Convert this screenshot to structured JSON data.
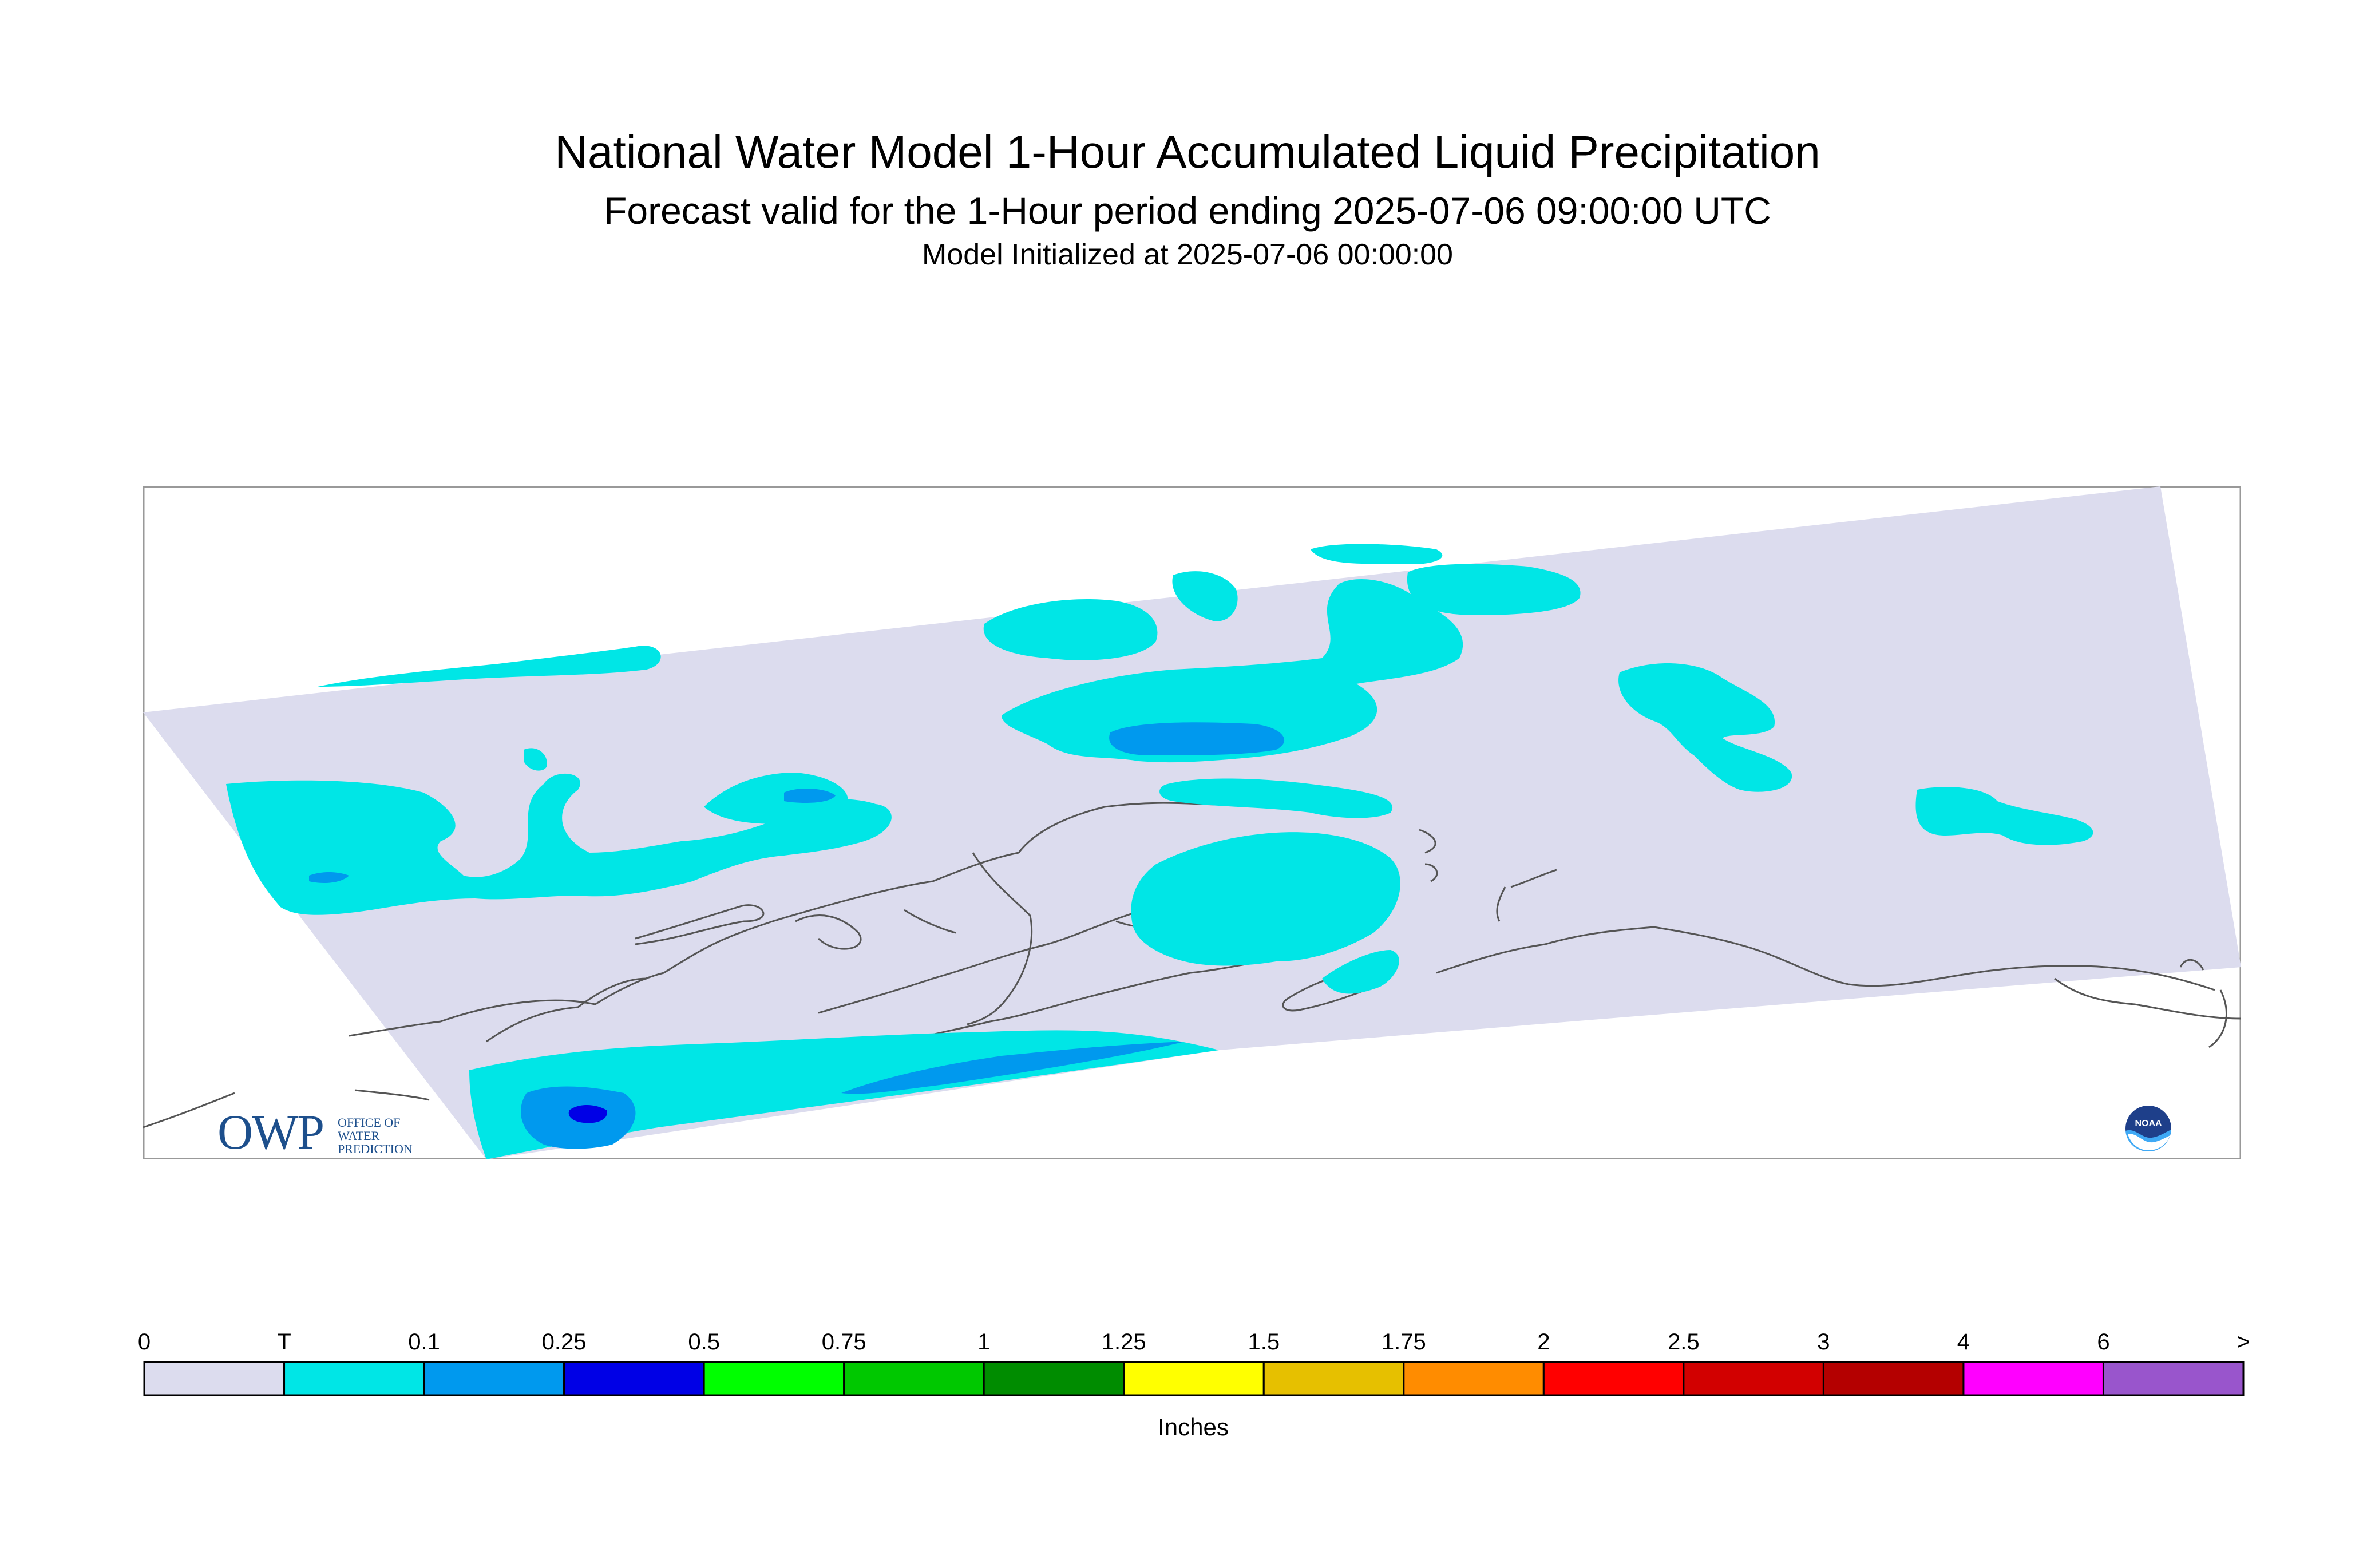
{
  "title": "National Water Model 1-Hour Accumulated Liquid Precipitation",
  "subtitle": "Forecast valid for the 1-Hour period ending 2025-07-06 09:00:00 UTC",
  "init": "Model Initialized at 2025-07-06 00:00:00",
  "logos": {
    "owp": "OWP",
    "owp_sub": [
      "OFFICE OF",
      "WATER",
      "PREDICTION"
    ],
    "noaa": "NOAA"
  },
  "colors": {
    "zero": "#dcdcee",
    "trace": "#00e6e6",
    "light": "#0099ee",
    "heavy": "#0000e6",
    "border": "#555555",
    "frame": "#999999"
  },
  "legend": {
    "unit_label": "Inches",
    "labels": [
      "0",
      "T",
      "0.1",
      "0.25",
      "0.5",
      "0.75",
      "1",
      "1.25",
      "1.5",
      "1.75",
      "2",
      "2.5",
      "3",
      "4",
      "6",
      ">"
    ],
    "colors": [
      "#dcdcee",
      "#00e6e6",
      "#0099ee",
      "#0000e6",
      "#00ff00",
      "#00c800",
      "#008c00",
      "#ffff00",
      "#e6c000",
      "#ff8c00",
      "#ff0000",
      "#d20000",
      "#b40000",
      "#ff00ff",
      "#9955cc"
    ]
  }
}
